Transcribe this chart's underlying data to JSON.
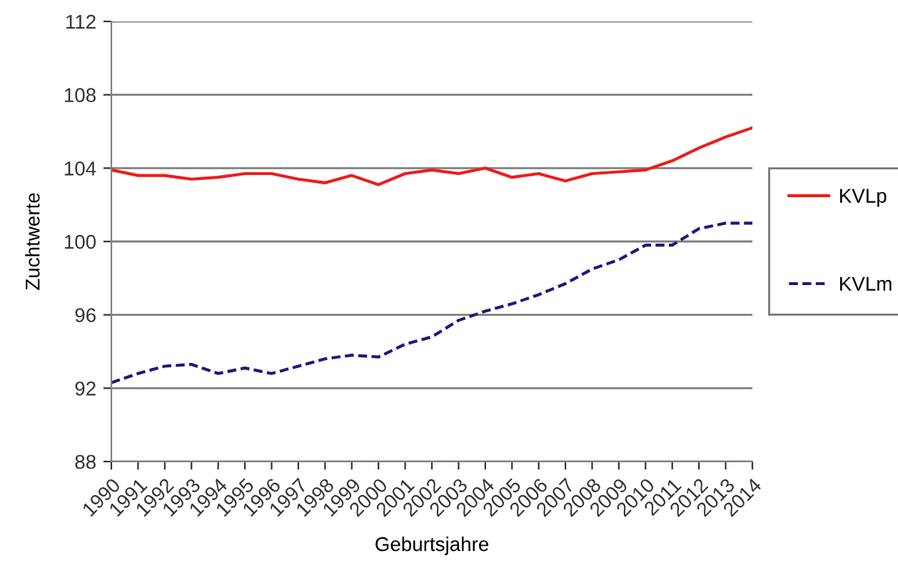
{
  "chart_data": {
    "type": "line",
    "xlabel": "Geburtsjahre",
    "ylabel": "Zuchtwerte",
    "categories": [
      "1990",
      "1991",
      "1992",
      "1993",
      "1994",
      "1995",
      "1996",
      "1997",
      "1998",
      "1999",
      "2000",
      "2001",
      "2002",
      "2003",
      "2004",
      "2005",
      "2006",
      "2007",
      "2008",
      "2009",
      "2010",
      "2011",
      "2012",
      "2013",
      "2014"
    ],
    "series": [
      {
        "name": "KVLp",
        "color": "#ee1c1c",
        "line_style": "solid",
        "values": [
          103.9,
          103.6,
          103.6,
          103.4,
          103.5,
          103.7,
          103.7,
          103.4,
          103.2,
          103.6,
          103.1,
          103.7,
          103.9,
          103.7,
          104.0,
          103.5,
          103.7,
          103.3,
          103.7,
          103.8,
          103.9,
          104.4,
          105.1,
          105.7,
          106.2
        ]
      },
      {
        "name": "KVLm",
        "color": "#1f1a7a",
        "line_style": "dashed",
        "values": [
          92.3,
          92.8,
          93.2,
          93.3,
          92.8,
          93.1,
          92.8,
          93.2,
          93.6,
          93.8,
          93.7,
          94.4,
          94.8,
          95.7,
          96.2,
          96.6,
          97.1,
          97.7,
          98.5,
          99.0,
          99.8,
          99.8,
          100.7,
          101.0,
          101.0
        ]
      }
    ],
    "ylim": [
      88,
      112
    ],
    "yticks": [
      88,
      92,
      96,
      100,
      104,
      108,
      112
    ],
    "grid": "y",
    "legend": "right",
    "marker": "none"
  }
}
